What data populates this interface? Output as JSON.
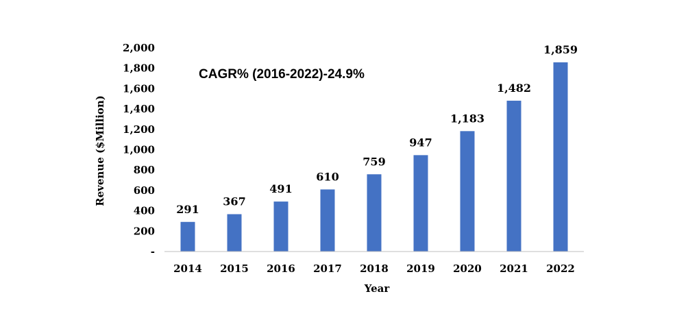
{
  "chart_data": {
    "type": "bar",
    "categories": [
      "2014",
      "2015",
      "2016",
      "2017",
      "2018",
      "2019",
      "2020",
      "2021",
      "2022"
    ],
    "values": [
      291,
      367,
      491,
      610,
      759,
      947,
      1183,
      1482,
      1859
    ],
    "value_labels": [
      "291",
      "367",
      "491",
      "610",
      "759",
      "947",
      "1,183",
      "1,482",
      "1,859"
    ],
    "title": "",
    "annotation": "CAGR% (2016-2022)-24.9%",
    "xlabel": "Year",
    "ylabel": "Revenue ($Million)",
    "ylim": [
      0,
      2000
    ],
    "yticks": [
      0,
      200,
      400,
      600,
      800,
      1000,
      1200,
      1400,
      1600,
      1800,
      2000
    ],
    "ytick_labels": [
      "-",
      "200",
      "400",
      "600",
      "800",
      "1,000",
      "1,200",
      "1,400",
      "1,600",
      "1,800",
      "2,000"
    ],
    "grid": false,
    "legend": "none",
    "bar_color": "#4472C4"
  }
}
